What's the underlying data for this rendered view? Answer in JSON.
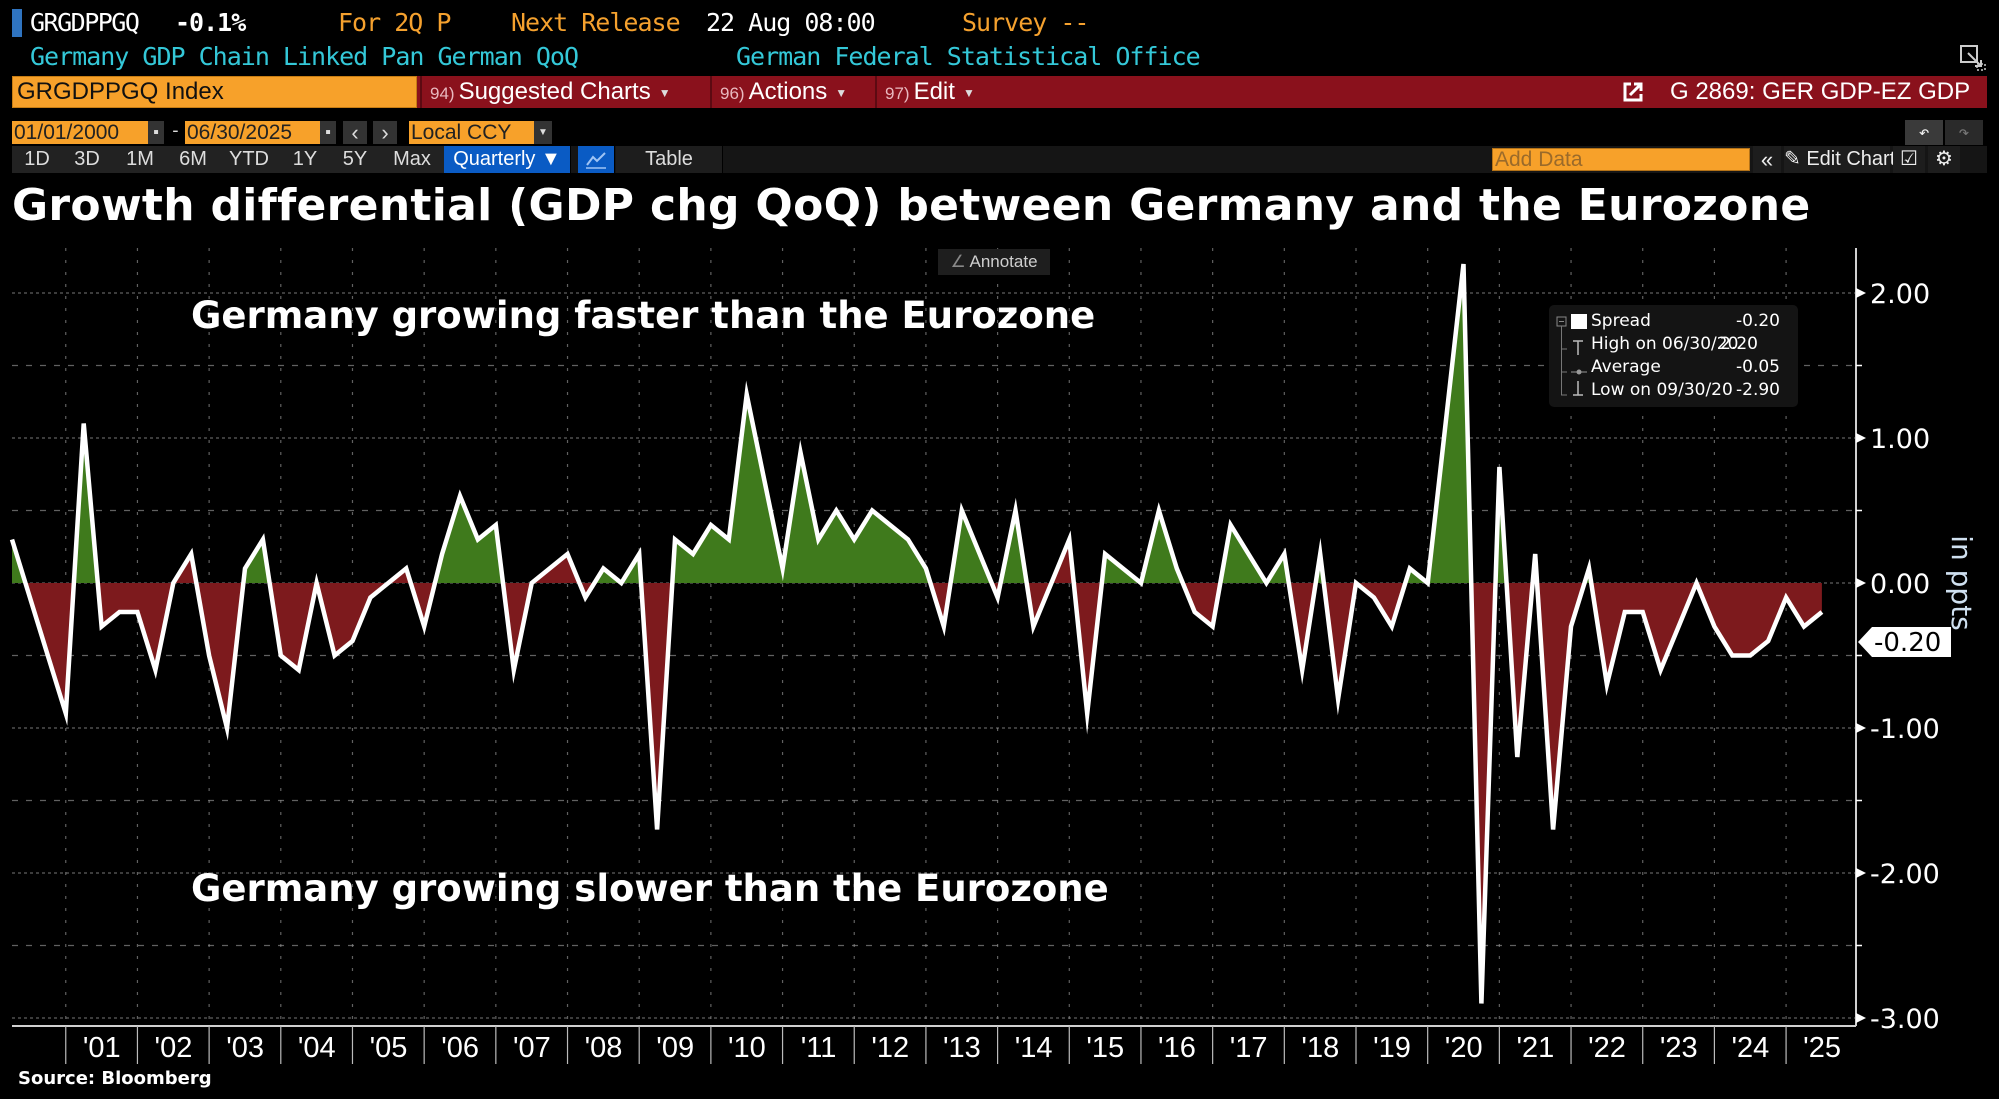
{
  "header": {
    "ticker": "GRGDPPGQ",
    "last_change": "-0.1%",
    "period": "For 2Q P",
    "next_release_label": "Next Release",
    "next_release_value": "22 Aug 08:00",
    "survey": "Survey --",
    "description": "Germany GDP Chain Linked Pan German QoQ",
    "source_org": "German Federal Statistical Office"
  },
  "command_bar": {
    "security": "GRGDPPGQ Index",
    "menus": [
      {
        "num": "94)",
        "label": "Suggested Charts"
      },
      {
        "num": "96)",
        "label": "Actions"
      },
      {
        "num": "97)",
        "label": "Edit"
      }
    ],
    "chart_name": "G 2869: GER GDP-EZ GDP"
  },
  "date_bar": {
    "start_date": "01/01/2000",
    "separator": "-",
    "end_date": "06/30/2025",
    "prev": "‹",
    "next": "›",
    "currency": "Local CCY",
    "undo": "↶",
    "redo": "↷"
  },
  "range_bar": {
    "ranges": [
      "1D",
      "3D",
      "1M",
      "6M",
      "YTD",
      "1Y",
      "5Y",
      "Max"
    ],
    "frequency": "Quarterly ▼",
    "table_label": "Table",
    "add_data_placeholder": "Add Data",
    "collapse": "«",
    "edit_chart": "Edit Chart"
  },
  "annotate_label": "Annotate",
  "source_label": "Source: Bloomberg",
  "legend": {
    "rows": [
      {
        "label": "Spread",
        "value": "-0.20"
      },
      {
        "label": "High on 06/30/20",
        "value": "2.20"
      },
      {
        "label": "Average",
        "value": "-0.05"
      },
      {
        "label": "Low on 09/30/20",
        "value": "-2.90"
      }
    ]
  },
  "colors": {
    "positive_fill": "#3f7a1c",
    "negative_fill": "#7d1a1d",
    "line": "#ffffff",
    "accent_orange": "#f7a12a",
    "menu_red": "#8a111c",
    "cyan_text": "#34c8d8"
  },
  "chart_data": {
    "type": "area",
    "title": "Growth differential (GDP chg QoQ) between Germany and the Eurozone",
    "ylabel": "in ppts",
    "xlabel": "",
    "ylim": [
      -3.0,
      2.0
    ],
    "yticks": [
      "2.00",
      "1.00",
      "0.00",
      "-1.00",
      "-2.00",
      "-3.00"
    ],
    "xticks": [
      "'01",
      "'02",
      "'03",
      "'04",
      "'05",
      "'06",
      "'07",
      "'08",
      "'09",
      "'10",
      "'11",
      "'12",
      "'13",
      "'14",
      "'15",
      "'16",
      "'17",
      "'18",
      "'19",
      "'20",
      "'21",
      "'22",
      "'23",
      "'24",
      "'25"
    ],
    "grid": true,
    "last_value_label": "-0.20",
    "annotations": [
      "Germany growing faster than the Eurozone",
      "Germany growing slower than the Eurozone"
    ],
    "legend_position": "top-right",
    "series": [
      {
        "name": "Spread",
        "start": "2000Q1",
        "frequency": "quarterly",
        "values": [
          0.3,
          -0.1,
          -0.5,
          -0.9,
          1.1,
          -0.3,
          -0.2,
          -0.2,
          -0.6,
          0.0,
          0.2,
          -0.5,
          -1.0,
          0.1,
          0.3,
          -0.5,
          -0.6,
          0.0,
          -0.5,
          -0.4,
          -0.1,
          0.0,
          0.1,
          -0.3,
          0.2,
          0.6,
          0.3,
          0.4,
          -0.6,
          0.0,
          0.1,
          0.2,
          -0.1,
          0.1,
          0.0,
          0.2,
          -1.7,
          0.3,
          0.2,
          0.4,
          0.3,
          1.3,
          0.7,
          0.1,
          0.9,
          0.3,
          0.5,
          0.3,
          0.5,
          0.4,
          0.3,
          0.1,
          -0.3,
          0.5,
          0.2,
          -0.1,
          0.5,
          -0.3,
          0.0,
          0.3,
          -0.9,
          0.2,
          0.1,
          0.0,
          0.5,
          0.1,
          -0.2,
          -0.3,
          0.4,
          0.2,
          0.0,
          0.2,
          -0.6,
          0.2,
          -0.8,
          0.0,
          -0.1,
          -0.3,
          0.1,
          0.0,
          1.1,
          2.2,
          -2.9,
          0.8,
          -1.2,
          0.2,
          -1.7,
          -0.3,
          0.1,
          -0.7,
          -0.2,
          -0.2,
          -0.6,
          -0.3,
          0.0,
          -0.3,
          -0.5,
          -0.5,
          -0.4,
          -0.1,
          -0.3,
          -0.2
        ]
      }
    ]
  }
}
